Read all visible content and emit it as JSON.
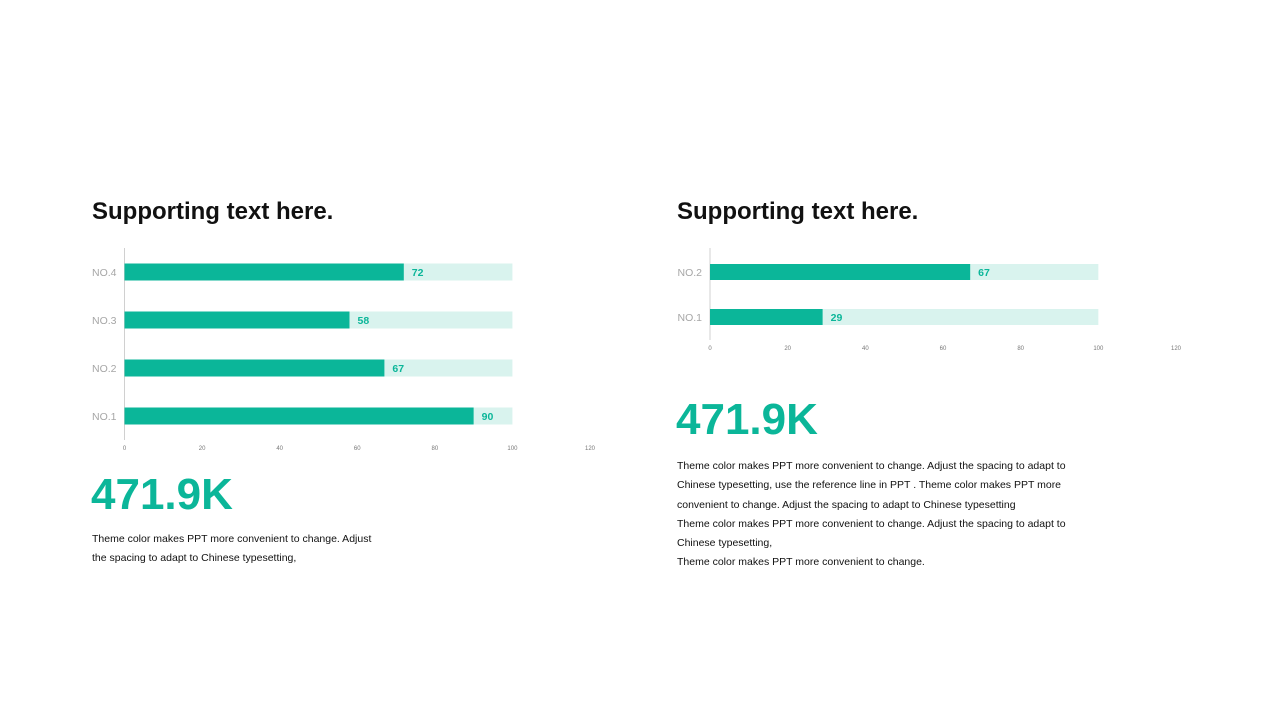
{
  "colors": {
    "accent": "#0bb699",
    "track": "#d9f3ee",
    "category_label": "#a6a6a6",
    "tick_label": "#777777",
    "axis": "#d0d0d0",
    "heading": "#111111"
  },
  "left": {
    "heading": "Supporting text here.",
    "stat": "471.9K",
    "body_lines": [
      "Theme color makes PPT more convenient to change. Adjust",
      "the spacing to adapt to Chinese typesetting,"
    ]
  },
  "right": {
    "heading": "Supporting text here.",
    "stat": "471.9K",
    "body_lines": [
      "Theme color makes PPT more convenient to change. Adjust the spacing to adapt to",
      "Chinese typesetting, use the reference line in PPT . Theme color makes PPT more",
      "convenient to change. Adjust the spacing to adapt to Chinese typesetting",
      "Theme color makes PPT more convenient to change. Adjust the spacing to adapt to",
      "Chinese typesetting,",
      "Theme color makes PPT more convenient to change."
    ]
  },
  "chart_data": [
    {
      "type": "bar",
      "orientation": "horizontal",
      "categories": [
        "NO.4",
        "NO.3",
        "NO.2",
        "NO.1"
      ],
      "values": [
        72,
        58,
        67,
        90
      ],
      "track_value": 100,
      "xlim": [
        0,
        120
      ],
      "xticks": [
        0,
        20,
        40,
        60,
        80,
        100,
        120
      ],
      "data_labels": true,
      "grid": false
    },
    {
      "type": "bar",
      "orientation": "horizontal",
      "categories": [
        "NO.2",
        "NO.1"
      ],
      "values": [
        67,
        29
      ],
      "track_value": 100,
      "xlim": [
        0,
        120
      ],
      "xticks": [
        0,
        20,
        40,
        60,
        80,
        100,
        120
      ],
      "data_labels": true,
      "grid": false
    }
  ]
}
